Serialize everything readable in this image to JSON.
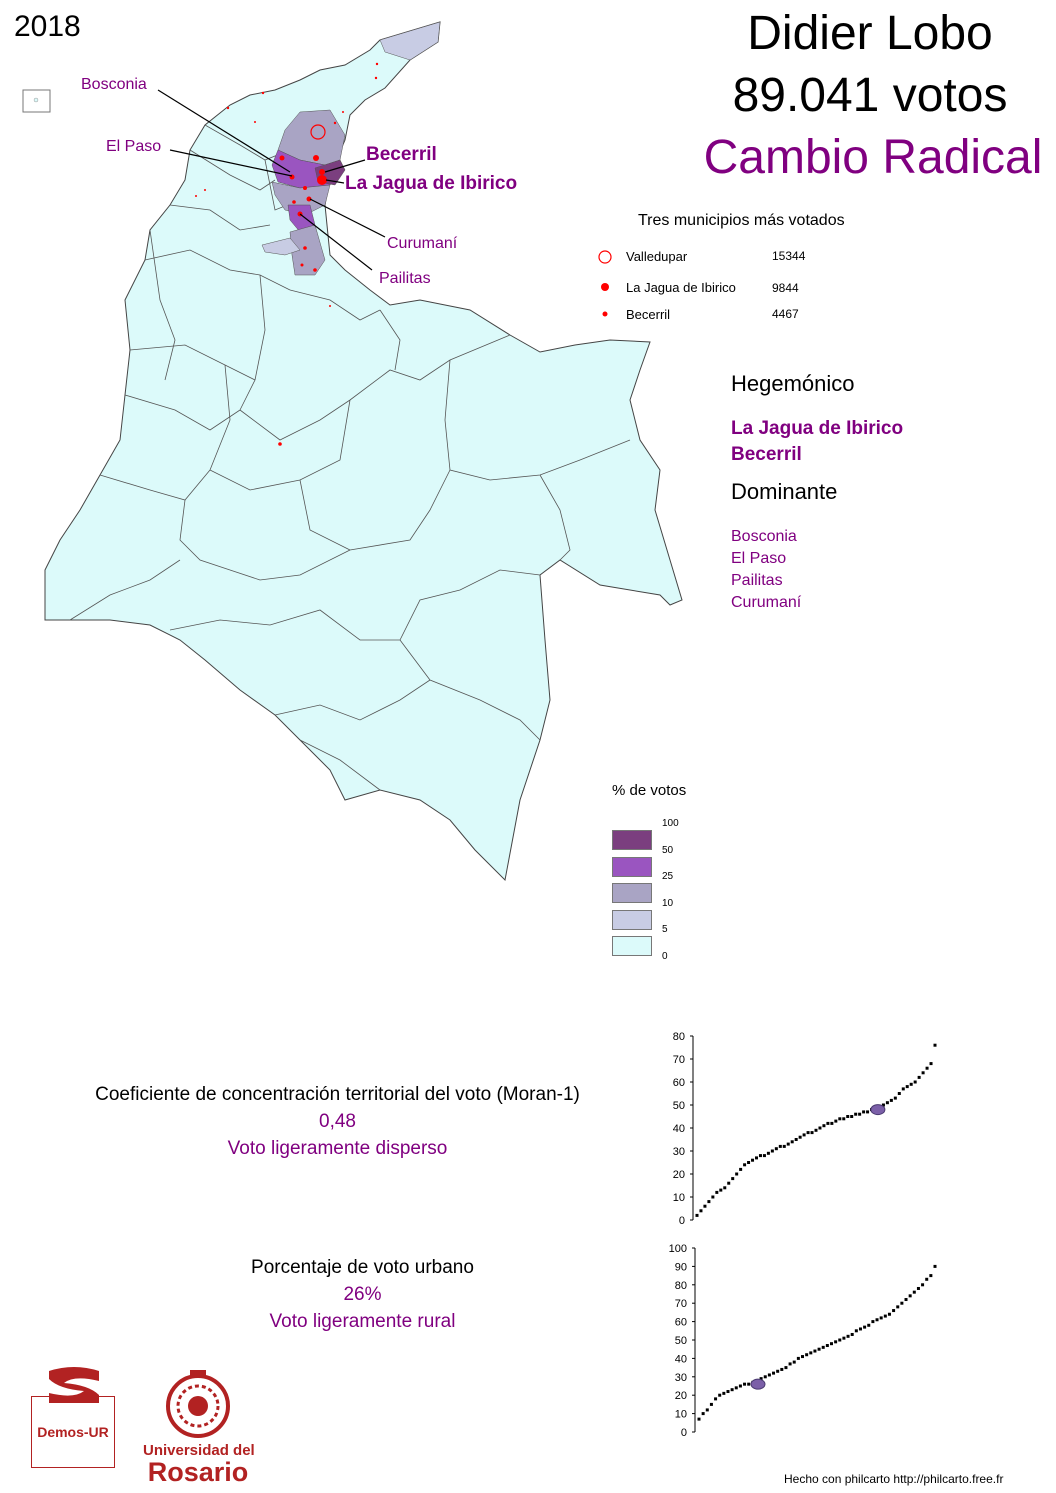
{
  "year": "2018",
  "candidate": "Didier Lobo",
  "votes": "89.041 votos",
  "party": "Cambio Radical",
  "party_color": "#800080",
  "top_municipalities": {
    "title": "Tres municipios más votados",
    "items": [
      {
        "name": "Valledupar",
        "value": "15344",
        "marker": "open-circle"
      },
      {
        "name": "La Jagua de Ibirico",
        "value": "9844",
        "marker": "filled-circle-large"
      },
      {
        "name": "Becerril",
        "value": "4467",
        "marker": "filled-circle-small"
      }
    ]
  },
  "hegemonic": {
    "title": "Hegemónico",
    "items": [
      "La Jagua de Ibirico",
      "Becerril"
    ]
  },
  "dominant": {
    "title": "Dominante",
    "items": [
      "Bosconia",
      "El Paso",
      "Pailitas",
      "Curumaní"
    ]
  },
  "map_callouts": {
    "bosconia": "Bosconia",
    "el_paso": "El Paso",
    "becerril": "Becerril",
    "la_jagua": "La Jagua de Ibirico",
    "curumani": "Curumaní",
    "pailitas": "Pailitas"
  },
  "legend": {
    "title": "% de votos",
    "ticks": [
      "100",
      "50",
      "25",
      "10",
      "5",
      "0"
    ],
    "classes": [
      {
        "range": "50-100",
        "color": "#7b3f7f"
      },
      {
        "range": "25-50",
        "color": "#9a55c0"
      },
      {
        "range": "10-25",
        "color": "#a9a4c4"
      },
      {
        "range": "5-10",
        "color": "#c8cce4"
      },
      {
        "range": "0-5",
        "color": "#dcfafa"
      }
    ]
  },
  "moran": {
    "title": "Coeficiente de concentración territorial del voto (Moran-1)",
    "value": "0,48",
    "description": "Voto ligeramente disperso"
  },
  "urban": {
    "title": "Porcentaje de voto urbano",
    "value": "26%",
    "description": "Voto ligeramente rural"
  },
  "chart_data": [
    {
      "type": "scatter",
      "title": "",
      "xlabel": "",
      "ylabel": "",
      "ylim": [
        0,
        80
      ],
      "yticks": [
        "0",
        "10",
        "20",
        "30",
        "40",
        "50",
        "60",
        "70",
        "80"
      ],
      "highlight": {
        "index_fraction": 0.76,
        "value": 48
      },
      "series": [
        {
          "values": [
            2,
            4,
            6,
            8,
            10,
            12,
            13,
            14,
            16,
            18,
            20,
            22,
            24,
            25,
            26,
            27,
            28,
            28,
            29,
            30,
            31,
            32,
            32,
            33,
            34,
            35,
            36,
            37,
            38,
            38,
            39,
            40,
            41,
            42,
            42,
            43,
            44,
            44,
            45,
            45,
            46,
            46,
            47,
            47,
            48,
            48,
            49,
            50,
            51,
            52,
            53,
            55,
            57,
            58,
            59,
            60,
            62,
            64,
            66,
            68,
            76
          ]
        }
      ]
    },
    {
      "type": "scatter",
      "title": "",
      "xlabel": "",
      "ylabel": "",
      "ylim": [
        0,
        100
      ],
      "yticks": [
        "0",
        "10",
        "20",
        "30",
        "40",
        "50",
        "60",
        "70",
        "80",
        "90",
        "100"
      ],
      "highlight": {
        "index_fraction": 0.25,
        "value": 26
      },
      "series": [
        {
          "values": [
            7,
            10,
            12,
            15,
            18,
            20,
            21,
            22,
            23,
            24,
            25,
            26,
            26,
            27,
            28,
            29,
            30,
            31,
            32,
            33,
            34,
            35,
            37,
            38,
            40,
            41,
            42,
            43,
            44,
            45,
            46,
            47,
            48,
            49,
            50,
            51,
            52,
            53,
            55,
            56,
            57,
            58,
            60,
            61,
            62,
            63,
            64,
            66,
            68,
            70,
            72,
            74,
            76,
            78,
            80,
            83,
            85,
            90
          ]
        }
      ]
    }
  ],
  "credit": "Hecho con philcarto http://philcarto.free.fr",
  "logos": {
    "demos": "Demos-UR",
    "ur_line1": "Universidad del",
    "ur_line2": "Rosario"
  }
}
